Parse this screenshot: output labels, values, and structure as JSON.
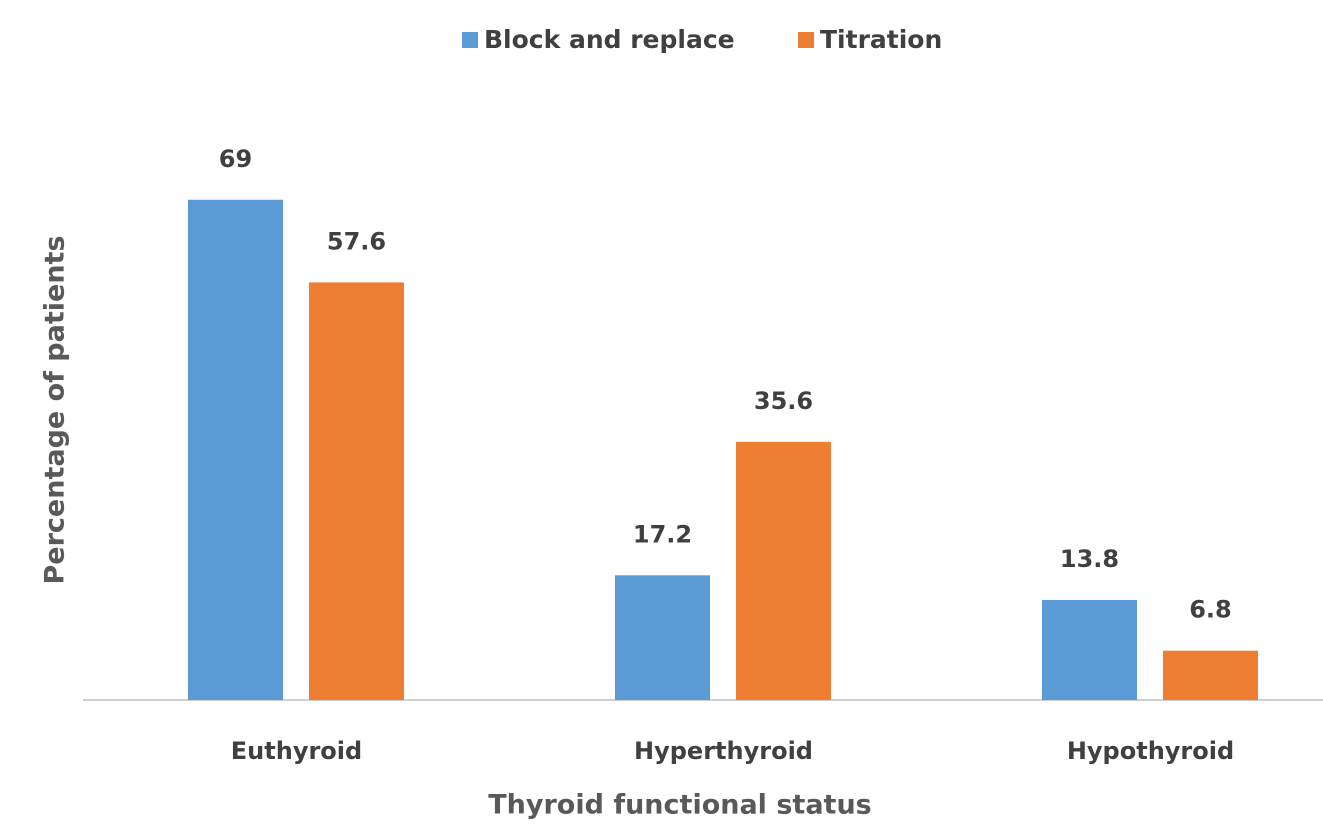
{
  "chart_data": {
    "type": "bar",
    "x_label": "Thyroid functional status",
    "y_label": "Percentage of patients",
    "categories": [
      "Euthyroid",
      "Hyperthyroid",
      "Hypothyroid"
    ],
    "series": [
      {
        "name": "Block and replace",
        "color": "#5b9bd5",
        "values": [
          69,
          17.2,
          13.8
        ]
      },
      {
        "name": "Titration",
        "color": "#ed7d31",
        "values": [
          57.6,
          35.6,
          6.8
        ]
      }
    ],
    "ylim": [
      0,
      80
    ],
    "legend": "top"
  }
}
